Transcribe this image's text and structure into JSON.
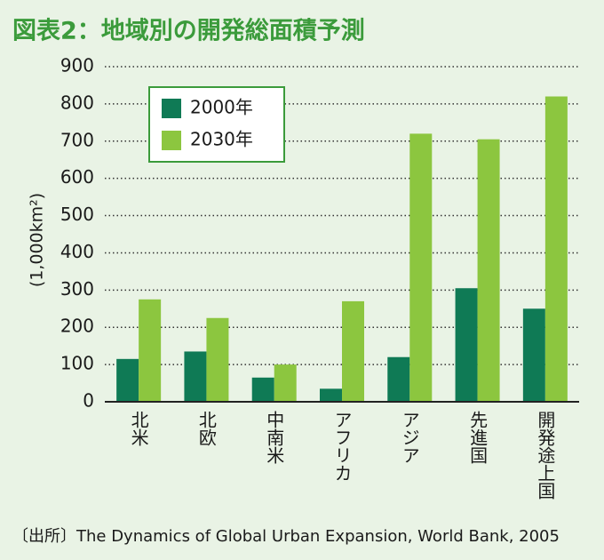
{
  "chart_data": {
    "type": "bar",
    "title": "図表2：地域別の開発総面積予測",
    "y_label": "(1,000km²)",
    "source": "〔出所〕The Dynamics of Global Urban Expansion, World Bank, 2005",
    "categories": [
      "北米",
      "北欧",
      "中南米",
      "アフリカ",
      "アジア",
      "先進国",
      "開発途上国"
    ],
    "series": [
      {
        "name": "2000年",
        "color": "#0f7a55",
        "values": [
          115,
          135,
          65,
          35,
          120,
          305,
          250
        ]
      },
      {
        "name": "2030年",
        "color": "#8cc63f",
        "values": [
          275,
          225,
          100,
          270,
          720,
          705,
          820
        ]
      }
    ],
    "ylim": [
      0,
      900
    ],
    "yticks": [
      0,
      100,
      200,
      300,
      400,
      500,
      600,
      700,
      800,
      900
    ],
    "grid": true,
    "legend": "upper-left"
  }
}
